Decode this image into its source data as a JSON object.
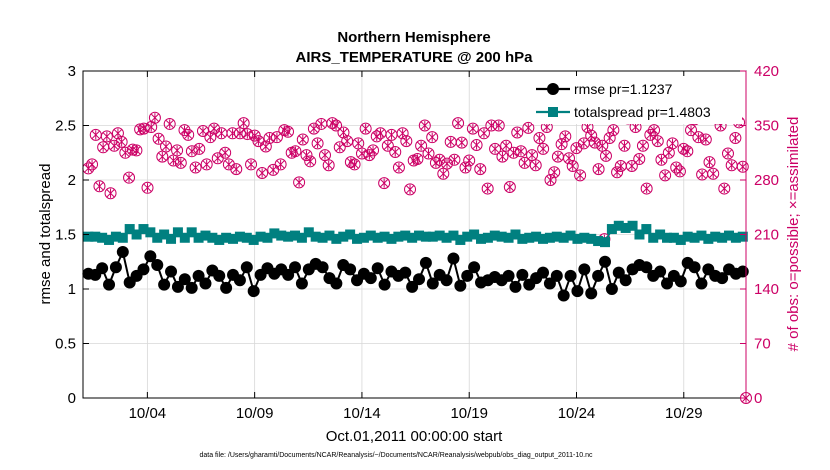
{
  "chart_data": {
    "type": "line",
    "title": "Northern Hemisphere",
    "subtitle": "AIRS_TEMPERATURE @ 200 hPa",
    "xlabel": "Oct.01,2011 00:00:00 start",
    "ylabel": "rmse and totalspread",
    "y2label": "# of obs: o=possible; ×=assimilated",
    "footnote": "data file: /Users/gharamti/Documents/NCAR/Reanalysis/~/Documents/NCAR/Reanalysis/webpub/obs_diag_output_2011-10.nc",
    "x_tick_labels": [
      "10/04",
      "10/09",
      "10/14",
      "10/19",
      "10/24",
      "10/29"
    ],
    "x_ticks_day": [
      4,
      9,
      14,
      19,
      24,
      29
    ],
    "xlim_day": [
      1.0,
      31.9
    ],
    "ylim": [
      0,
      3
    ],
    "y_ticks": [
      "0",
      "0.5",
      "1",
      "1.5",
      "2",
      "2.5",
      "3"
    ],
    "y2lim": [
      0,
      420
    ],
    "y2_ticks": [
      "0",
      "70",
      "140",
      "210",
      "280",
      "350",
      "420"
    ],
    "grid": true,
    "legend_position": "top-right",
    "colors": {
      "rmse": "#000000",
      "totalspread": "#008080",
      "obs": "#cc0066",
      "grid": "#d7d7d7"
    },
    "series": [
      {
        "name": "rmse pr=1.1237",
        "axis": "left",
        "marker": "circle",
        "values": [
          1.14,
          1.13,
          1.19,
          1.04,
          1.2,
          1.34,
          1.06,
          1.12,
          1.18,
          1.3,
          1.22,
          1.04,
          1.16,
          1.02,
          1.09,
          1.01,
          1.12,
          1.05,
          1.17,
          1.12,
          1.01,
          1.13,
          1.08,
          1.2,
          0.98,
          1.13,
          1.19,
          1.14,
          1.18,
          1.13,
          1.2,
          1.05,
          1.18,
          1.23,
          1.2,
          1.1,
          1.05,
          1.22,
          1.18,
          1.08,
          1.14,
          1.1,
          1.19,
          1.04,
          1.16,
          1.12,
          1.15,
          1.02,
          1.09,
          1.24,
          1.05,
          1.13,
          1.08,
          1.28,
          1.03,
          1.12,
          1.2,
          1.06,
          1.08,
          1.11,
          1.08,
          1.12,
          1.02,
          1.13,
          1.04,
          1.1,
          1.15,
          1.05,
          1.12,
          0.94,
          1.12,
          0.98,
          1.18,
          0.96,
          1.12,
          1.25,
          1.0,
          1.15,
          1.08,
          1.18,
          1.22,
          1.2,
          1.12,
          1.16,
          1.05,
          1.12,
          1.07,
          1.24,
          1.2,
          1.05,
          1.18,
          1.12,
          1.1,
          1.18,
          1.14,
          1.16
        ]
      },
      {
        "name": "totalspread pr=1.4803",
        "axis": "left",
        "marker": "square",
        "values": [
          1.48,
          1.48,
          1.47,
          1.45,
          1.48,
          1.47,
          1.55,
          1.5,
          1.55,
          1.52,
          1.47,
          1.5,
          1.46,
          1.52,
          1.47,
          1.52,
          1.47,
          1.49,
          1.47,
          1.45,
          1.47,
          1.46,
          1.48,
          1.47,
          1.45,
          1.48,
          1.47,
          1.51,
          1.49,
          1.48,
          1.49,
          1.47,
          1.52,
          1.48,
          1.47,
          1.49,
          1.46,
          1.48,
          1.5,
          1.46,
          1.47,
          1.49,
          1.47,
          1.48,
          1.46,
          1.48,
          1.49,
          1.47,
          1.49,
          1.48,
          1.48,
          1.49,
          1.47,
          1.49,
          1.45,
          1.48,
          1.5,
          1.46,
          1.47,
          1.49,
          1.48,
          1.47,
          1.5,
          1.46,
          1.47,
          1.48,
          1.46,
          1.47,
          1.48,
          1.47,
          1.49,
          1.46,
          1.47,
          1.46,
          1.44,
          1.43,
          1.55,
          1.58,
          1.56,
          1.58,
          1.5,
          1.55,
          1.47,
          1.5,
          1.47,
          1.47,
          1.45,
          1.48,
          1.47,
          1.49,
          1.46,
          1.48,
          1.47,
          1.49,
          1.47,
          1.48
        ]
      },
      {
        "name": "# of obs possible",
        "axis": "right",
        "marker": "circle-open",
        "values": [
          295,
          300,
          338,
          272,
          322,
          336,
          263,
          324,
          340,
          329,
          315,
          283,
          319,
          318,
          345,
          346,
          270,
          348,
          360,
          333,
          310,
          323,
          352,
          305,
          318,
          302,
          344,
          338,
          317,
          296,
          320,
          343,
          300,
          335,
          346,
          308,
          340,
          315,
          300,
          340,
          294,
          340,
          353,
          339,
          300,
          337,
          330,
          289,
          323,
          334,
          293,
          335,
          300,
          344,
          342,
          315,
          317,
          277,
          332,
          312,
          304,
          346,
          327,
          352,
          312,
          299,
          353,
          350,
          322,
          341,
          330,
          303,
          300,
          327,
          314,
          346,
          312,
          318,
          336,
          340,
          276,
          324,
          338,
          316,
          296,
          340,
          330,
          268,
          305,
          307,
          324,
          350,
          314,
          335,
          302,
          306,
          288,
          301,
          329,
          306,
          353,
          328,
          296,
          305,
          346,
          325,
          294,
          340,
          269,
          350,
          320,
          350,
          310,
          324,
          271,
          315,
          341,
          317,
          302,
          347,
          312,
          299,
          334,
          320,
          348,
          280,
          290,
          310,
          326,
          336,
          308,
          298,
          321,
          286,
          327,
          348,
          337,
          328,
          294,
          324,
          311,
          334,
          344,
          290,
          298,
          324,
          359,
          298,
          348,
          307,
          324,
          269,
          338,
          344,
          330,
          306,
          286,
          315,
          327,
          296,
          291,
          320,
          317,
          344,
          358,
          335,
          287,
          332,
          303,
          288,
          359,
          350,
          269,
          314,
          299,
          334,
          354,
          297
        ]
      },
      {
        "name": "# of obs assimilated",
        "axis": "right",
        "marker": "x",
        "values": [
          295,
          300,
          338,
          272,
          322,
          336,
          263,
          324,
          340,
          329,
          315,
          283,
          319,
          318,
          345,
          346,
          270,
          348,
          360,
          333,
          310,
          323,
          352,
          305,
          318,
          302,
          344,
          338,
          317,
          296,
          320,
          343,
          300,
          335,
          346,
          308,
          340,
          315,
          300,
          340,
          294,
          340,
          353,
          339,
          300,
          337,
          330,
          289,
          323,
          334,
          293,
          335,
          300,
          344,
          342,
          315,
          317,
          277,
          332,
          312,
          304,
          346,
          327,
          352,
          312,
          299,
          353,
          350,
          322,
          341,
          330,
          303,
          300,
          327,
          314,
          346,
          312,
          318,
          336,
          340,
          276,
          324,
          338,
          316,
          296,
          340,
          330,
          268,
          305,
          307,
          324,
          350,
          314,
          335,
          302,
          306,
          288,
          301,
          329,
          306,
          353,
          328,
          296,
          305,
          346,
          325,
          294,
          340,
          269,
          350,
          320,
          350,
          310,
          324,
          271,
          315,
          341,
          317,
          302,
          347,
          312,
          299,
          334,
          320,
          348,
          280,
          290,
          310,
          326,
          336,
          308,
          298,
          321,
          286,
          327,
          348,
          337,
          328,
          294,
          324,
          311,
          334,
          344,
          290,
          298,
          324,
          359,
          298,
          348,
          307,
          324,
          269,
          338,
          344,
          330,
          306,
          286,
          315,
          327,
          296,
          291,
          320,
          317,
          344,
          358,
          335,
          287,
          332,
          303,
          288,
          359,
          350,
          269,
          314,
          299,
          334,
          354,
          297
        ]
      }
    ],
    "extra_points": [
      {
        "series": "# of obs possible",
        "x_day": 25.3,
        "y": 204
      },
      {
        "series": "# of obs possible",
        "x_day": 31.9,
        "y": 0
      }
    ]
  }
}
